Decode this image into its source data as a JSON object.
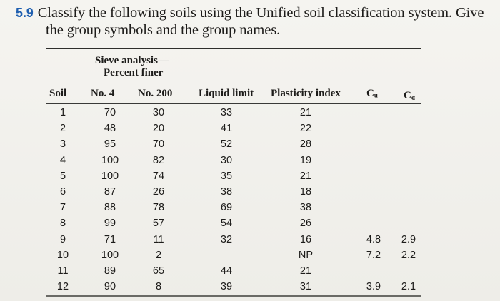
{
  "problem": {
    "number": "5.9",
    "line1": "Classify the following soils using the Unified soil classification system. Give",
    "line2": "the group symbols and the group names."
  },
  "table": {
    "group_header_line1": "Sieve analysis—",
    "group_header_line2": "Percent finer",
    "columns": [
      "Soil",
      "No. 4",
      "No. 200",
      "Liquid limit",
      "Plasticity index",
      "Cᵤ",
      "C꜀"
    ],
    "rows": [
      [
        "1",
        "70",
        "30",
        "33",
        "21",
        "",
        ""
      ],
      [
        "2",
        "48",
        "20",
        "41",
        "22",
        "",
        ""
      ],
      [
        "3",
        "95",
        "70",
        "52",
        "28",
        "",
        ""
      ],
      [
        "4",
        "100",
        "82",
        "30",
        "19",
        "",
        ""
      ],
      [
        "5",
        "100",
        "74",
        "35",
        "21",
        "",
        ""
      ],
      [
        "6",
        "87",
        "26",
        "38",
        "18",
        "",
        ""
      ],
      [
        "7",
        "88",
        "78",
        "69",
        "38",
        "",
        ""
      ],
      [
        "8",
        "99",
        "57",
        "54",
        "26",
        "",
        ""
      ],
      [
        "9",
        "71",
        "11",
        "32",
        "16",
        "4.8",
        "2.9"
      ],
      [
        "10",
        "100",
        "2",
        "",
        "NP",
        "7.2",
        "2.2"
      ],
      [
        "11",
        "89",
        "65",
        "44",
        "21",
        "",
        ""
      ],
      [
        "12",
        "90",
        "8",
        "39",
        "31",
        "3.9",
        "2.1"
      ]
    ]
  }
}
